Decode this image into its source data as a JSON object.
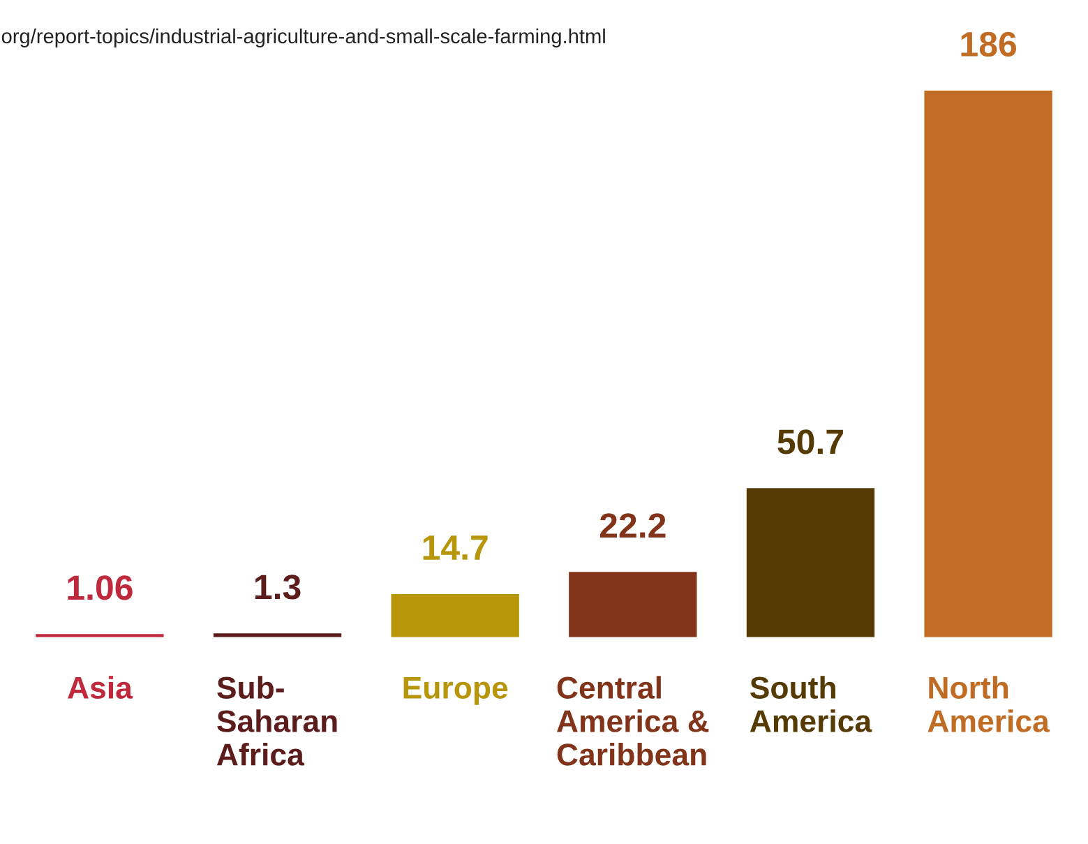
{
  "chart_data": {
    "type": "bar",
    "categories": [
      "Asia",
      "Sub-\nSaharan\nAfrica",
      "Europe",
      "Central\nAmerica &\nCaribbean",
      "South\nAmerica",
      "North\nAmerica"
    ],
    "values": [
      1.06,
      1.3,
      14.7,
      22.2,
      50.7,
      186
    ],
    "colors": [
      "#c0283c",
      "#5c1c1c",
      "#b8960c",
      "#82341a",
      "#553a04",
      "#c06c24"
    ],
    "data_labels": true,
    "annotations": [
      "org/report-topics/industrial-agriculture-and-small-scale-farming.html"
    ]
  }
}
